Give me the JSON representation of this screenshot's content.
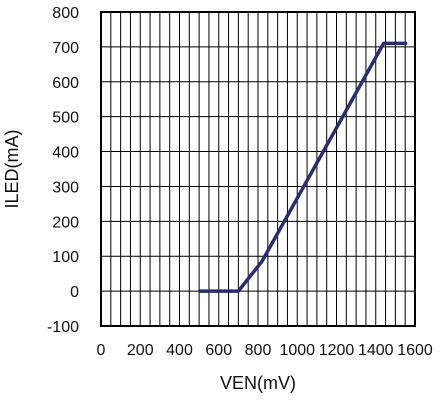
{
  "chart_data": {
    "type": "line",
    "title": "",
    "xlabel": "VEN(mV)",
    "ylabel": "ILED(mA)",
    "xlim": [
      0,
      1600
    ],
    "ylim": [
      -100,
      800
    ],
    "xticks": [
      0,
      200,
      400,
      600,
      800,
      1000,
      1200,
      1400,
      1600
    ],
    "yticks": [
      -100,
      0,
      100,
      200,
      300,
      400,
      500,
      600,
      700,
      800
    ],
    "xtick_labels": [
      "0",
      "200",
      "400",
      "600",
      "800",
      "1000",
      "1200",
      "1400",
      "1600"
    ],
    "ytick_labels": [
      "-100",
      "0",
      "100",
      "200",
      "300",
      "400",
      "500",
      "600",
      "700",
      "800"
    ],
    "grid": true,
    "x_minor_step": 50,
    "series": [
      {
        "x": [
          500,
          700,
          820,
          1440,
          1560
        ],
        "y": [
          0,
          0,
          85,
          710,
          710
        ],
        "color": "#2b2d6e"
      }
    ]
  }
}
